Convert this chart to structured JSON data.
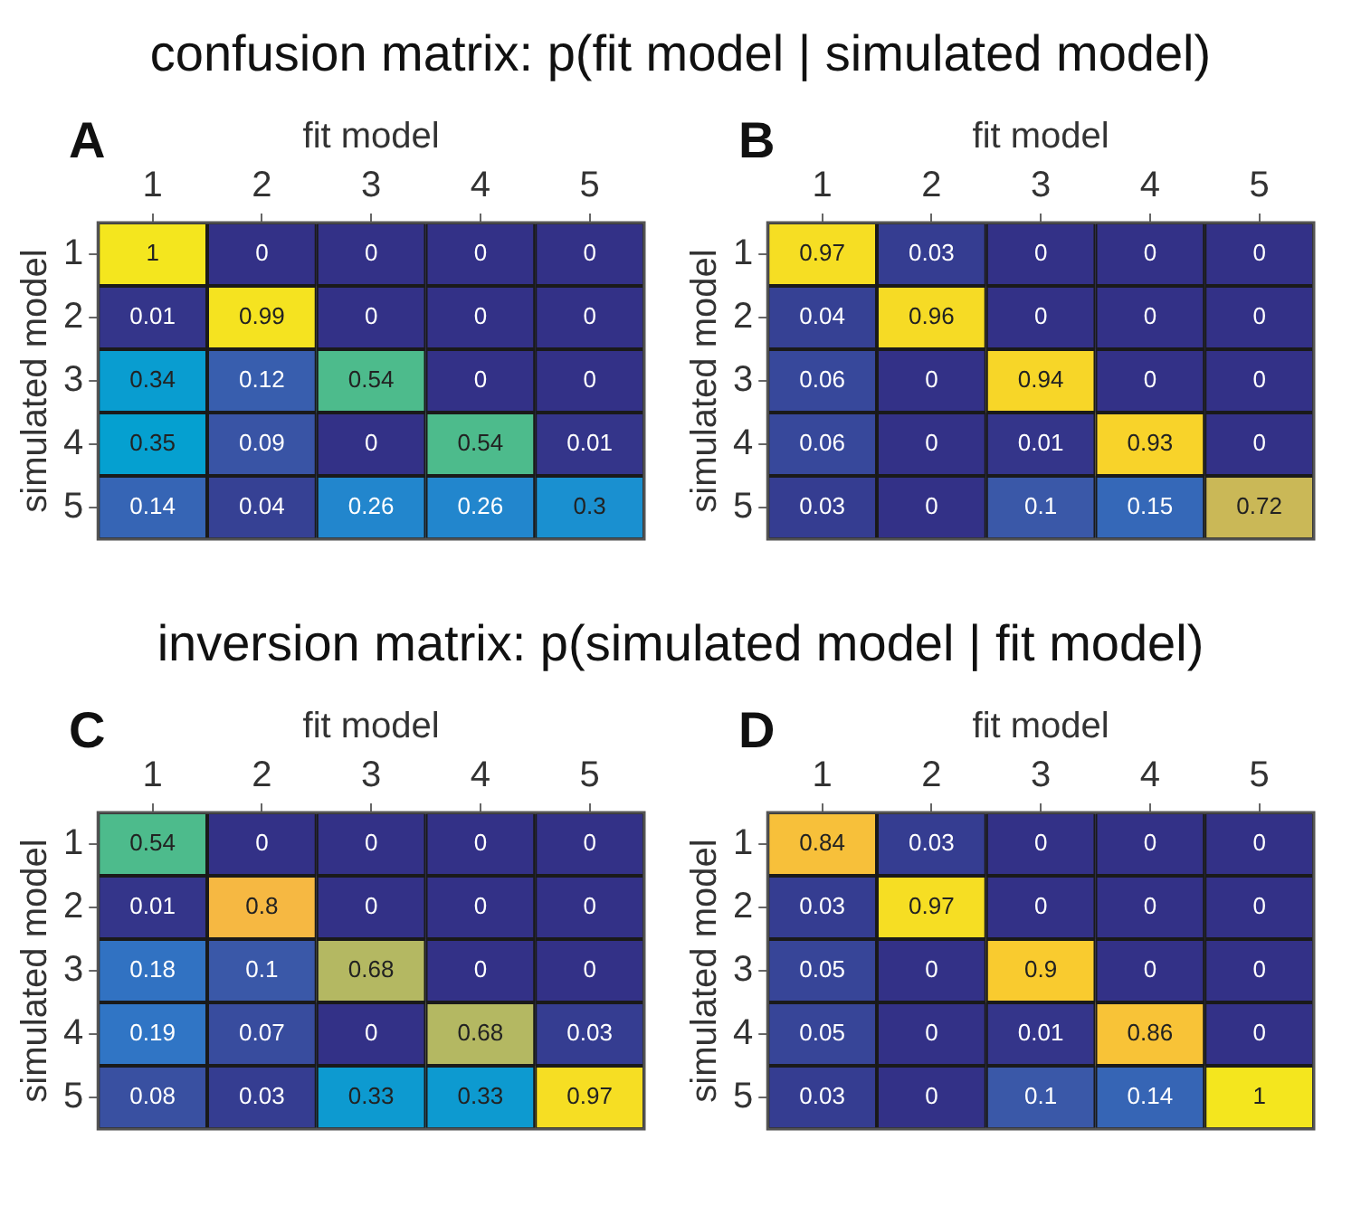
{
  "chart_data": [
    {
      "type": "heatmap",
      "title": "A",
      "annotations": [
        "confusion matrix: p(fit model | simulated model)"
      ],
      "xlabel": "fit model",
      "ylabel": "simulated model",
      "categories": [
        "1",
        "2",
        "3",
        "4",
        "5"
      ],
      "y_categories": [
        "1",
        "2",
        "3",
        "4",
        "5"
      ],
      "data_labels": true,
      "cells": [
        [
          1,
          0,
          0,
          0,
          0
        ],
        [
          0.01,
          0.99,
          0,
          0,
          0
        ],
        [
          0.34,
          0.12,
          0.54,
          0,
          0
        ],
        [
          0.35,
          0.09,
          0,
          0.54,
          0.01
        ],
        [
          0.14,
          0.04,
          0.26,
          0.26,
          0.3
        ]
      ]
    },
    {
      "type": "heatmap",
      "title": "B",
      "xlabel": "fit model",
      "ylabel": "simulated model",
      "categories": [
        "1",
        "2",
        "3",
        "4",
        "5"
      ],
      "y_categories": [
        "1",
        "2",
        "3",
        "4",
        "5"
      ],
      "data_labels": true,
      "cells": [
        [
          0.97,
          0.03,
          0,
          0,
          0
        ],
        [
          0.04,
          0.96,
          0,
          0,
          0
        ],
        [
          0.06,
          0,
          0.94,
          0,
          0
        ],
        [
          0.06,
          0,
          0.01,
          0.93,
          0
        ],
        [
          0.03,
          0,
          0.1,
          0.15,
          0.72
        ]
      ]
    },
    {
      "type": "heatmap",
      "title": "C",
      "annotations": [
        "inversion matrix: p(simulated model | fit model)"
      ],
      "xlabel": "fit model",
      "ylabel": "simulated model",
      "categories": [
        "1",
        "2",
        "3",
        "4",
        "5"
      ],
      "y_categories": [
        "1",
        "2",
        "3",
        "4",
        "5"
      ],
      "data_labels": true,
      "cells": [
        [
          0.54,
          0,
          0,
          0,
          0
        ],
        [
          0.01,
          0.8,
          0,
          0,
          0
        ],
        [
          0.18,
          0.1,
          0.68,
          0,
          0
        ],
        [
          0.19,
          0.07,
          0,
          0.68,
          0.03
        ],
        [
          0.08,
          0.03,
          0.33,
          0.33,
          0.97
        ]
      ]
    },
    {
      "type": "heatmap",
      "title": "D",
      "xlabel": "fit model",
      "ylabel": "simulated model",
      "categories": [
        "1",
        "2",
        "3",
        "4",
        "5"
      ],
      "y_categories": [
        "1",
        "2",
        "3",
        "4",
        "5"
      ],
      "data_labels": true,
      "cells": [
        [
          0.84,
          0.03,
          0,
          0,
          0
        ],
        [
          0.03,
          0.97,
          0,
          0,
          0
        ],
        [
          0.05,
          0,
          0.9,
          0,
          0
        ],
        [
          0.05,
          0,
          0.01,
          0.86,
          0
        ],
        [
          0.03,
          0,
          0.1,
          0.14,
          1
        ]
      ]
    }
  ]
}
